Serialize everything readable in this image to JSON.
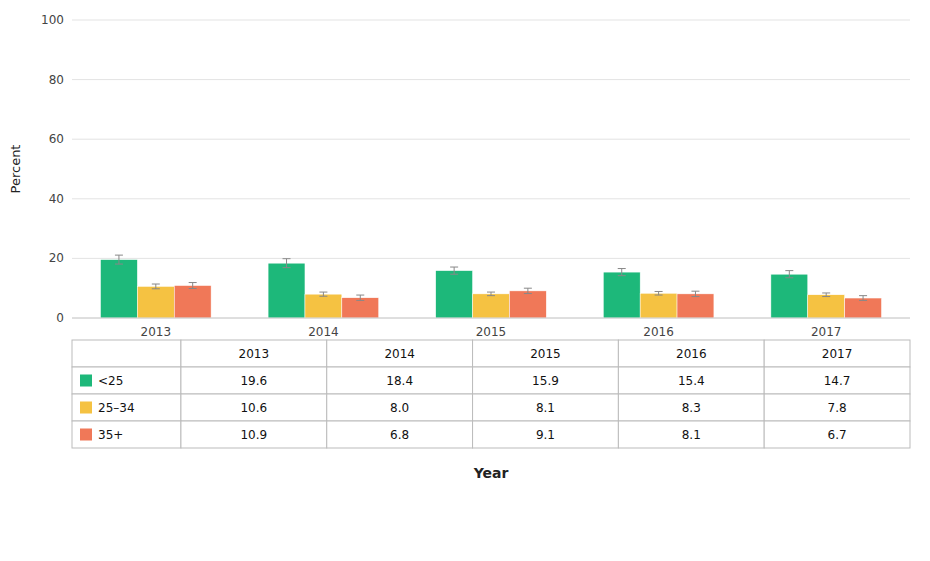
{
  "chart_data": {
    "type": "bar",
    "categories": [
      "2013",
      "2014",
      "2015",
      "2016",
      "2017"
    ],
    "series": [
      {
        "name": "<25",
        "color": "#1db87a",
        "values": [
          19.6,
          18.4,
          15.9,
          15.4,
          14.7
        ],
        "errors": [
          1.5,
          1.5,
          1.2,
          1.2,
          1.2
        ],
        "value_labels": [
          "19.6",
          "18.4",
          "15.9",
          "15.4",
          "14.7"
        ]
      },
      {
        "name": "25–34",
        "color": "#f5c242",
        "values": [
          10.6,
          8.0,
          8.1,
          8.3,
          7.8
        ],
        "errors": [
          0.8,
          0.7,
          0.6,
          0.6,
          0.6
        ],
        "value_labels": [
          "10.6",
          "8.0",
          "8.1",
          "8.3",
          "7.8"
        ]
      },
      {
        "name": "35+",
        "color": "#f07858",
        "values": [
          10.9,
          6.8,
          9.1,
          8.1,
          6.7
        ],
        "errors": [
          1.0,
          0.9,
          0.9,
          0.9,
          0.8
        ],
        "value_labels": [
          "10.9",
          "6.8",
          "9.1",
          "8.1",
          "6.7"
        ]
      }
    ],
    "ylabel": "Percent",
    "xlabel": "Year",
    "ylim": [
      0,
      100
    ],
    "yticks": [
      0,
      20,
      40,
      60,
      80,
      100
    ],
    "grid": true
  }
}
